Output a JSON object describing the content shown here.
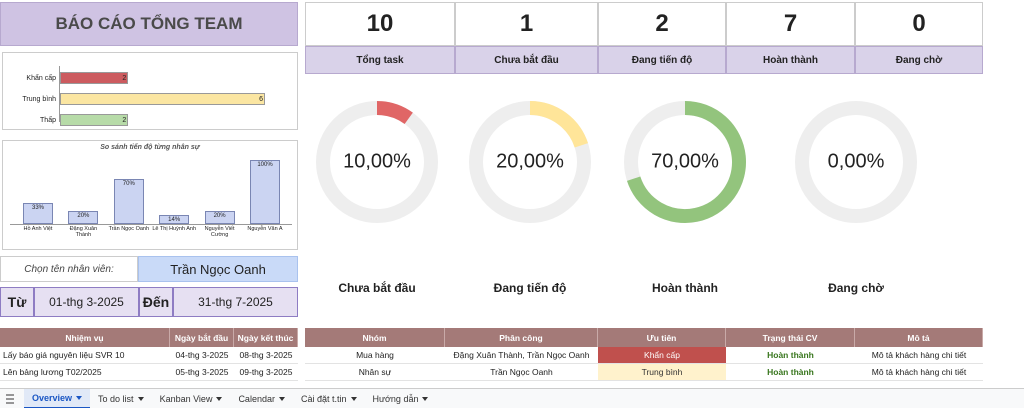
{
  "header": {
    "title": "BÁO CÁO TỔNG TEAM"
  },
  "priority_chart": {
    "type": "bar",
    "categories": [
      "Khẩn cấp",
      "Trung bình",
      "Thấp"
    ],
    "values": [
      2,
      6,
      2
    ],
    "colors": [
      "#cc5b5f",
      "#fbe6a2",
      "#b7dba8"
    ]
  },
  "progress_chart": {
    "type": "bar",
    "title": "So sánh tiến độ từng nhân sự",
    "categories": [
      "Hồ Anh Việt",
      "Đặng Xuân Thành",
      "Trần Ngọc Oanh",
      "Lê Thị Huỳnh Anh",
      "Nguyễn Viết Cường",
      "Nguyễn Văn A"
    ],
    "values": [
      33,
      20,
      70,
      14,
      20,
      100
    ],
    "value_labels": [
      "33%",
      "20%",
      "70%",
      "14%",
      "20%",
      "100%"
    ],
    "color": "#cbd4f2"
  },
  "filter": {
    "label": "Chọn tên nhân viên:",
    "value": "Trần Ngọc Oanh"
  },
  "date_range": {
    "from_label": "Từ",
    "from": "01-thg 3-2025",
    "to_label": "Đến",
    "to": "31-thg 7-2025"
  },
  "kpis": {
    "values": [
      10,
      1,
      2,
      7,
      0
    ],
    "labels": [
      "Tổng task",
      "Chưa bắt đầu",
      "Đang tiến độ",
      "Hoàn thành",
      "Đang chờ"
    ]
  },
  "status_chart": {
    "type": "donut",
    "categories": [
      "Chưa bắt đầu",
      "Đang tiến độ",
      "Hoàn thành",
      "Đang chờ"
    ],
    "values": [
      10,
      20,
      70,
      0
    ],
    "value_labels": [
      "10,00%",
      "20,00%",
      "70,00%",
      "0,00%"
    ],
    "colors": [
      "#e06666",
      "#ffe599",
      "#93c47d",
      "#b7b7b7"
    ]
  },
  "tasks_table": {
    "columns": [
      "Nhiệm vụ",
      "Ngày bắt đầu",
      "Ngày kết thúc"
    ],
    "rows": [
      [
        "Lấy báo giá nguyên liệu SVR 10",
        "04-thg 3-2025",
        "08-thg 3-2025"
      ],
      [
        "Lên bảng lương T02/2025",
        "05-thg 3-2025",
        "09-thg 3-2025"
      ]
    ]
  },
  "details_table": {
    "columns": [
      "Nhóm",
      "Phân công",
      "Ưu tiên",
      "Trạng thái CV",
      "Mô tả"
    ],
    "rows": [
      [
        "Mua hàng",
        "Đặng Xuân Thành, Trần Ngọc Oanh",
        "Khẩn cấp",
        "Hoàn thành",
        "Mô tả khách hàng chi tiết"
      ],
      [
        "Nhân sự",
        "Trần Ngọc Oanh",
        "Trung bình",
        "Hoàn thành",
        "Mô tả khách hàng chi tiết"
      ]
    ],
    "priority_fills": [
      "#c0504d",
      "#fff2cc"
    ],
    "priority_text": [
      "#ffffff",
      "#333333"
    ],
    "status_color": "#38761d"
  },
  "tabs": [
    "Overview",
    "To do list",
    "Kanban View",
    "Calendar",
    "Cài đặt t.tin",
    "Hướng dẫn"
  ]
}
